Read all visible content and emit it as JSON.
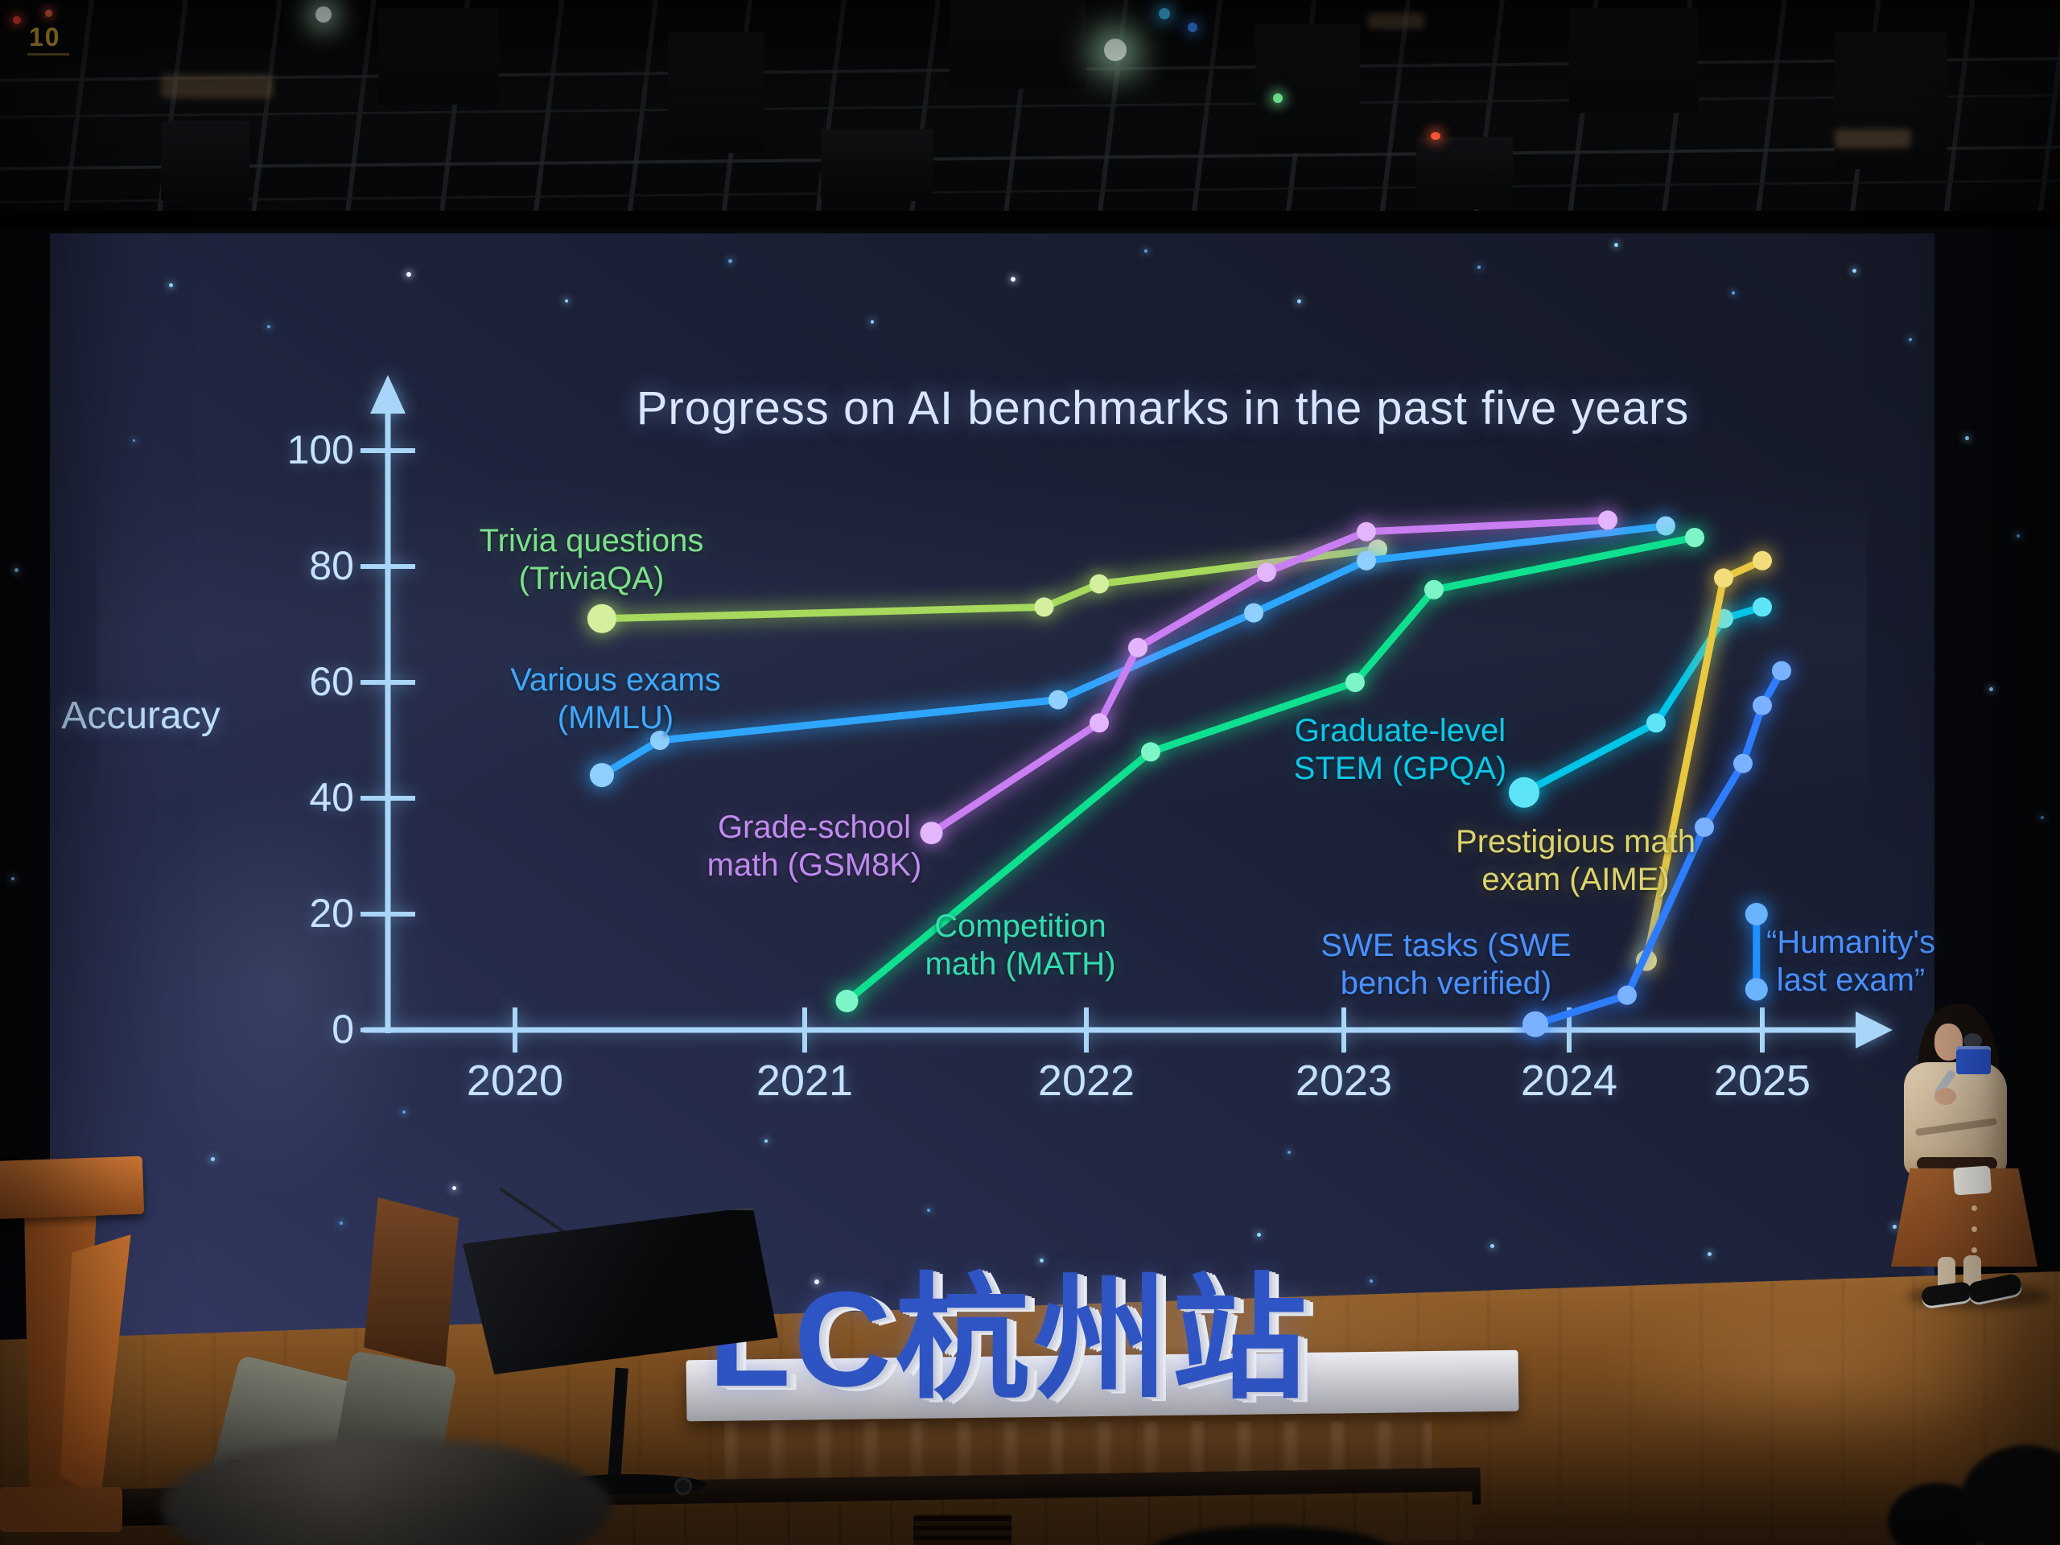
{
  "slide": {
    "title": "Progress on AI benchmarks in the past five years",
    "y_axis_label": "Accuracy"
  },
  "chart_data": {
    "type": "line",
    "title": "Progress on AI benchmarks in the past five years",
    "xlabel": "",
    "ylabel": "Accuracy",
    "ylim": [
      0,
      100
    ],
    "y_ticks": [
      0,
      20,
      40,
      60,
      80,
      100
    ],
    "x_ticks": [
      2020,
      2021,
      2022,
      2023,
      2024,
      2025
    ],
    "grid": false,
    "legend_position": "inline-labels-next-to-lines",
    "series": [
      {
        "name": "Trivia questions (TriviaQA)",
        "label_lines": [
          "Trivia questions",
          "(TriviaQA)"
        ],
        "color": "#a6d95c",
        "dot_color": "#d4ef9e",
        "label_color": "#7ce08c",
        "points": [
          [
            2020.3,
            71
          ],
          [
            2021.85,
            73
          ],
          [
            2022.05,
            77
          ],
          [
            2023.15,
            83
          ]
        ]
      },
      {
        "name": "Various exams (MMLU)",
        "label_lines": [
          "Various exams",
          "(MMLU)"
        ],
        "color": "#2ea6ff",
        "dot_color": "#8fd0ff",
        "label_color": "#3fa9ff",
        "points": [
          [
            2020.3,
            44
          ],
          [
            2020.5,
            50
          ],
          [
            2021.9,
            57
          ],
          [
            2022.65,
            72
          ],
          [
            2023.1,
            81
          ],
          [
            2024.5,
            87
          ]
        ]
      },
      {
        "name": "Grade-school math (GSM8K)",
        "label_lines": [
          "Grade-school",
          "math (GSM8K)"
        ],
        "color": "#c97ef2",
        "dot_color": "#e3b5fb",
        "label_color": "#c08bf0",
        "points": [
          [
            2021.45,
            34
          ],
          [
            2022.05,
            53
          ],
          [
            2022.2,
            66
          ],
          [
            2022.7,
            79
          ],
          [
            2023.1,
            86
          ],
          [
            2024.2,
            88
          ]
        ]
      },
      {
        "name": "Competition math (MATH)",
        "label_lines": [
          "Competition",
          "math (MATH)"
        ],
        "color": "#0fe08f",
        "dot_color": "#7df5c6",
        "label_color": "#35dcb0",
        "points": [
          [
            2021.15,
            5
          ],
          [
            2022.25,
            48
          ],
          [
            2023.05,
            60
          ],
          [
            2023.4,
            76
          ],
          [
            2024.65,
            85
          ]
        ]
      },
      {
        "name": "Graduate-level STEM (GPQA)",
        "label_lines": [
          "Graduate-level",
          "STEM (GPQA)"
        ],
        "color": "#00c4e8",
        "dot_color": "#5ee4f7",
        "label_color": "#0cc8e8",
        "points": [
          [
            2023.8,
            41
          ],
          [
            2024.45,
            53
          ],
          [
            2024.8,
            71
          ],
          [
            2025.0,
            73
          ]
        ]
      },
      {
        "name": "Prestigious math exam (AIME)",
        "label_lines": [
          "Prestigious math",
          "exam (AIME)"
        ],
        "color": "#e8c840",
        "dot_color": "#f3dd7a",
        "label_color": "#dcd46e",
        "points": [
          [
            2024.4,
            12
          ],
          [
            2024.8,
            78
          ],
          [
            2025.0,
            81
          ]
        ]
      },
      {
        "name": "SWE tasks (SWE bench verified)",
        "label_lines": [
          "SWE tasks (SWE",
          "bench verified)"
        ],
        "color": "#2e7dff",
        "dot_color": "#7ab2ff",
        "label_color": "#4a90ff",
        "points": [
          [
            2023.85,
            1
          ],
          [
            2024.3,
            6
          ],
          [
            2024.7,
            35
          ],
          [
            2024.9,
            46
          ],
          [
            2025.0,
            56
          ],
          [
            2025.1,
            62
          ]
        ]
      },
      {
        "name": "“Humanity's last exam”",
        "label_lines": [
          "“Humanity's",
          "last exam”"
        ],
        "color": "#1e90ff",
        "dot_color": "#6ab4ff",
        "label_color": "#4a90ff",
        "points": [
          [
            2024.97,
            7
          ],
          [
            2024.97,
            20
          ]
        ]
      }
    ]
  },
  "stage": {
    "backdrop_sign": "LC杭州站",
    "truss_marker": "10"
  }
}
